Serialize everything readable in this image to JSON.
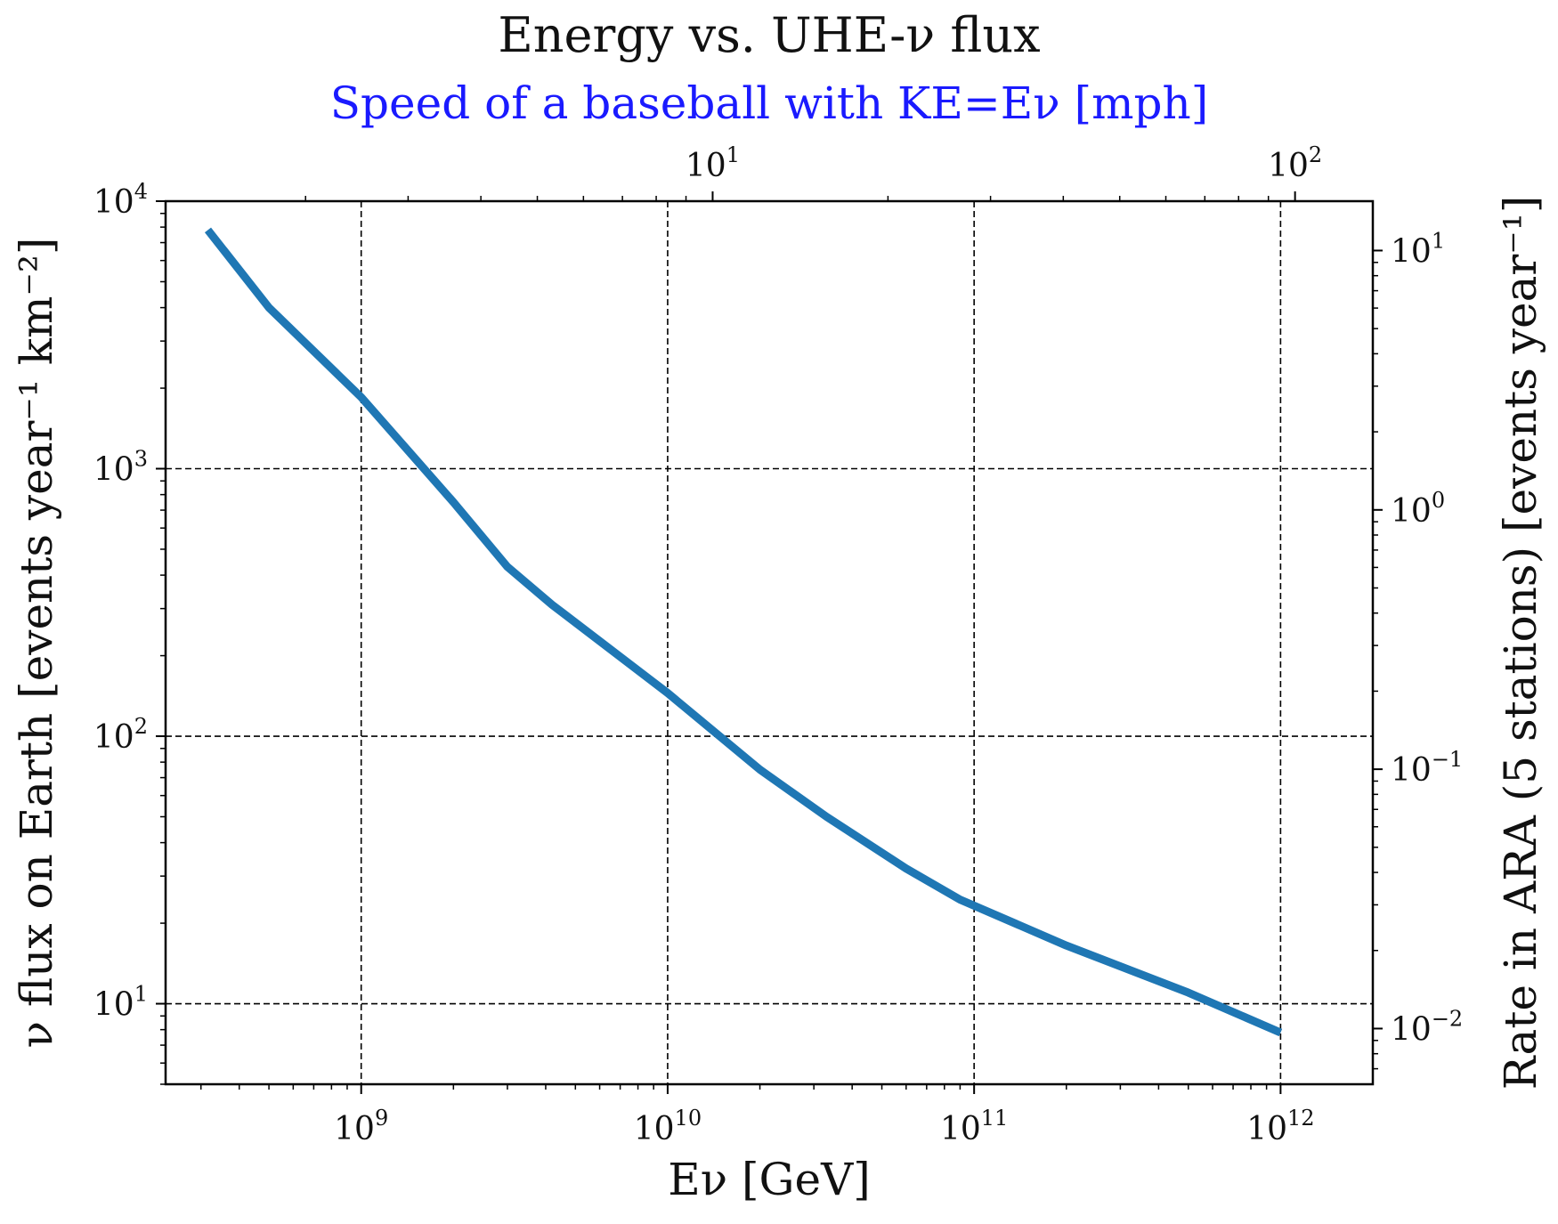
{
  "chart_data": {
    "type": "line",
    "title": "Energy vs. UHE-ν flux",
    "top_axis": {
      "label": "Speed of a baseball with KE=Eν [mph]",
      "scale": "log",
      "color": "#1a1aff",
      "ticks": [
        {
          "base": "10",
          "exp": "1",
          "value": 10
        },
        {
          "base": "10",
          "exp": "2",
          "value": 100
        }
      ]
    },
    "x_axis": {
      "label": "Eν [GeV]",
      "scale": "log",
      "ticks": [
        {
          "base": "10",
          "exp": "9",
          "value": 1000000000
        },
        {
          "base": "10",
          "exp": "10",
          "value": 10000000000
        },
        {
          "base": "10",
          "exp": "11",
          "value": 100000000000
        },
        {
          "base": "10",
          "exp": "12",
          "value": 1000000000000
        }
      ]
    },
    "y_axis": {
      "label": "ν flux on Earth [events year⁻¹ km⁻²]",
      "scale": "log",
      "ticks": [
        {
          "base": "10",
          "exp": "1",
          "value": 10
        },
        {
          "base": "10",
          "exp": "2",
          "value": 100
        },
        {
          "base": "10",
          "exp": "3",
          "value": 1000
        },
        {
          "base": "10",
          "exp": "4",
          "value": 10000
        }
      ]
    },
    "right_axis": {
      "label": "Rate in ARA (5 stations) [events year⁻¹]",
      "scale": "log",
      "color": "#1a6e1a",
      "ticks": [
        {
          "base": "10",
          "exp": "−2",
          "value": 0.01
        },
        {
          "base": "10",
          "exp": "−1",
          "value": 0.1
        },
        {
          "base": "10",
          "exp": "0",
          "value": 1
        },
        {
          "base": "10",
          "exp": "1",
          "value": 10
        }
      ]
    },
    "series": [
      {
        "color": "#1f77b4",
        "x": [
          316000000,
          500000000,
          1000000000,
          2000000000,
          3000000000,
          4200000000,
          10000000000,
          20000000000,
          33000000000,
          60000000000,
          90000000000,
          200000000000,
          500000000000,
          1000000000000
        ],
        "y": [
          7800,
          4000,
          1850,
          750,
          430,
          310,
          145,
          75,
          50,
          32,
          24.5,
          16.5,
          11,
          7.8
        ]
      }
    ],
    "grid": true
  }
}
